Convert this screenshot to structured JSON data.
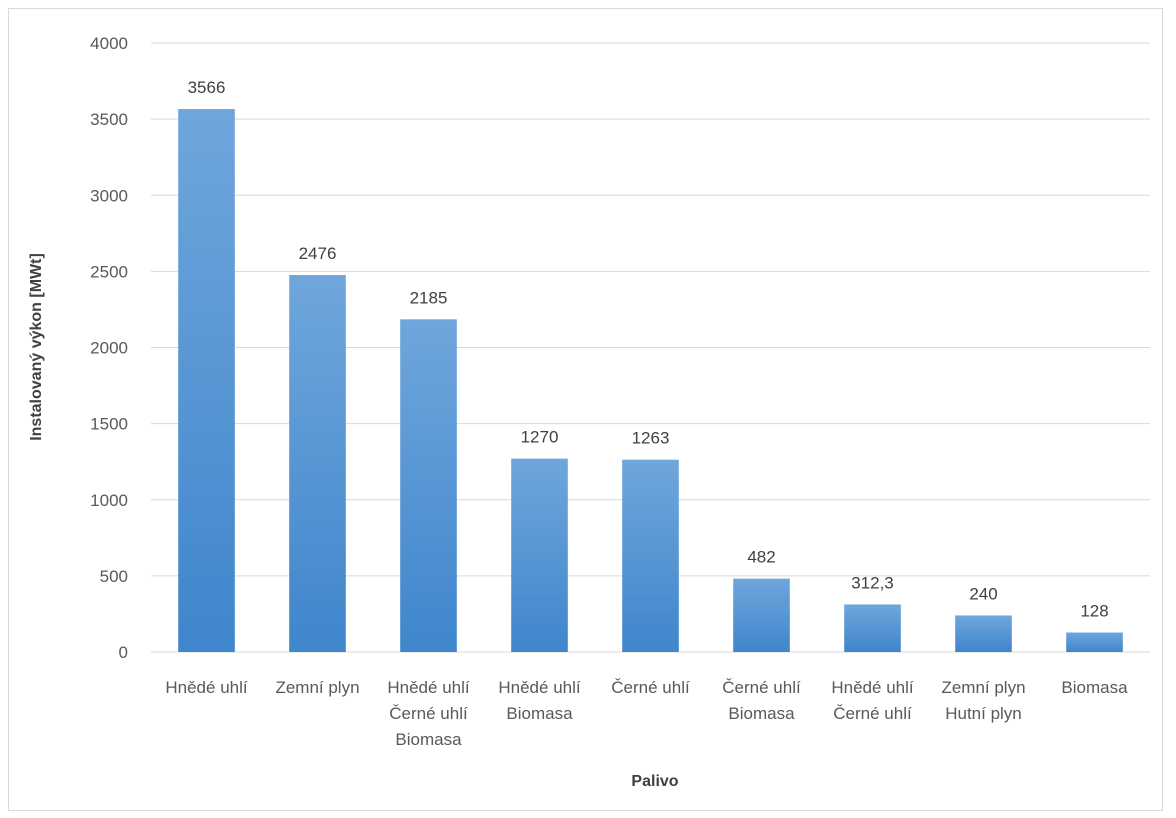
{
  "chart_data": {
    "type": "bar",
    "title": "",
    "xlabel": "Palivo",
    "ylabel": "Instalovaný výkon [MWt]",
    "ylim": [
      0,
      4000
    ],
    "yticks": [
      "0",
      "500",
      "1000",
      "1500",
      "2000",
      "2500",
      "3000",
      "3500",
      "4000"
    ],
    "grid": true,
    "categories": [
      [
        "Hnědé uhlí"
      ],
      [
        "Zemní plyn"
      ],
      [
        "Hnědé uhlí",
        "Černé uhlí",
        "Biomasa"
      ],
      [
        "Hnědé uhlí",
        "Biomasa"
      ],
      [
        "Černé uhlí"
      ],
      [
        "Černé uhlí",
        "Biomasa"
      ],
      [
        "Hnědé uhlí",
        "Černé uhlí"
      ],
      [
        "Zemní plyn",
        "Hutní plyn"
      ],
      [
        "Biomasa"
      ]
    ],
    "values": [
      3566,
      2476,
      2185,
      1270,
      1263,
      482,
      312.3,
      240,
      128
    ],
    "data_labels": [
      "3566",
      "2476",
      "2185",
      "1270",
      "1263",
      "482",
      "312,3",
      "240",
      "128"
    ],
    "colors": {
      "bar_top": "#6fa6dc",
      "bar_bottom": "#3f86cc",
      "grid": "#d9d9d9"
    }
  }
}
